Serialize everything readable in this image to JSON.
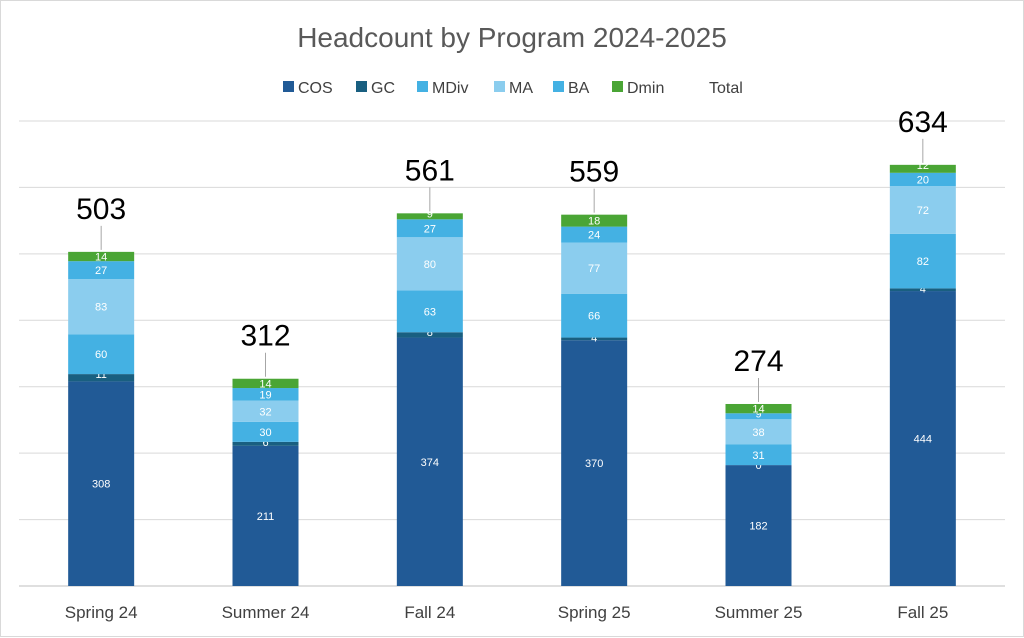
{
  "chart_data": {
    "type": "bar",
    "stacked": true,
    "title": "Headcount by Program 2024-2025",
    "categories": [
      "Spring 24",
      "Summer 24",
      "Fall 24",
      "Spring 25",
      "Summer 25",
      "Fall 25"
    ],
    "series": [
      {
        "name": "COS",
        "color": "#215a96",
        "values": [
          308,
          211,
          374,
          370,
          182,
          444
        ]
      },
      {
        "name": "GC",
        "color": "#195f80",
        "values": [
          11,
          6,
          8,
          4,
          0,
          4
        ]
      },
      {
        "name": "MDiv",
        "color": "#44b1e3",
        "values": [
          60,
          30,
          63,
          66,
          31,
          82
        ]
      },
      {
        "name": "MA",
        "color": "#8bcdee",
        "values": [
          83,
          32,
          80,
          77,
          38,
          72
        ]
      },
      {
        "name": "BA",
        "color": "#44b1e3",
        "values": [
          27,
          19,
          27,
          24,
          9,
          20
        ]
      },
      {
        "name": "Dmin",
        "color": "#4aa535",
        "values": [
          14,
          14,
          9,
          18,
          14,
          12
        ]
      }
    ],
    "totals_series": {
      "name": "Total",
      "values": [
        503,
        312,
        561,
        559,
        274,
        634
      ]
    },
    "ylim": [
      0,
      700
    ],
    "gridlines": true,
    "legend_position": "top"
  }
}
